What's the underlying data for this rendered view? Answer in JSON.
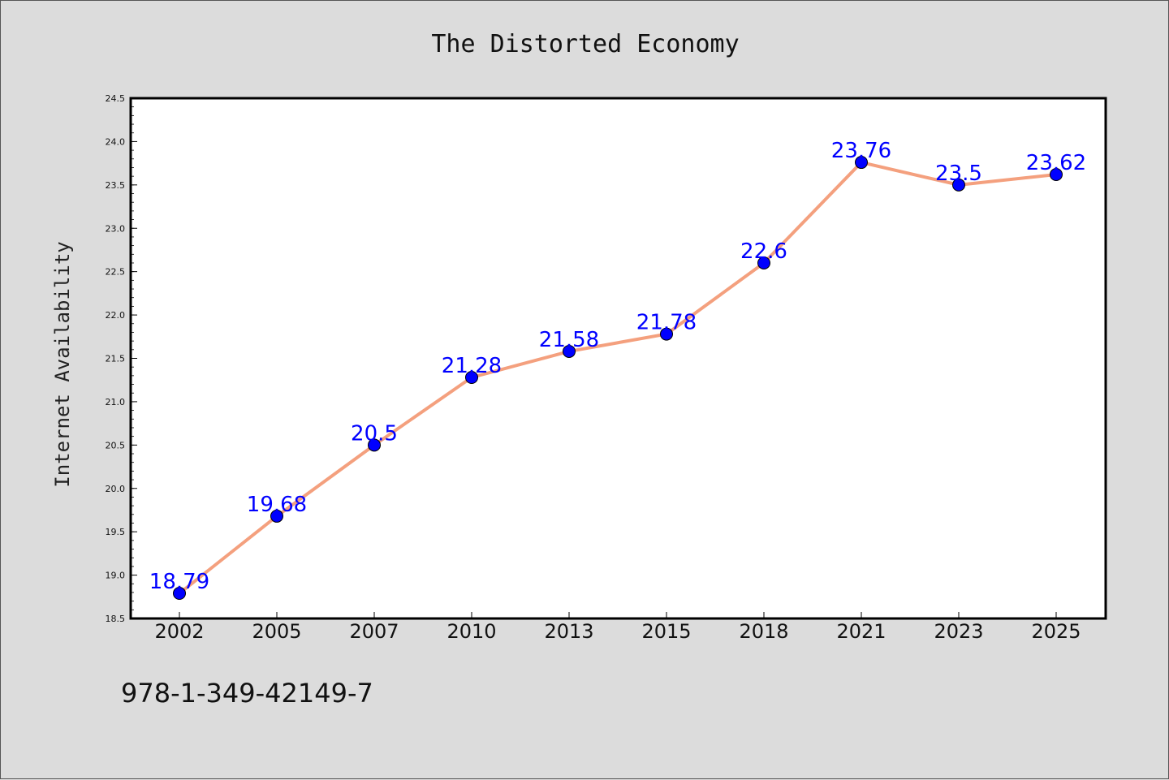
{
  "chart_data": {
    "type": "line",
    "title": "The Distorted Economy",
    "xlabel": "",
    "ylabel": "Internet Availability",
    "categories": [
      "2002",
      "2005",
      "2007",
      "2010",
      "2013",
      "2015",
      "2018",
      "2021",
      "2023",
      "2025"
    ],
    "series": [
      {
        "values": [
          18.79,
          19.68,
          20.5,
          21.28,
          21.58,
          21.78,
          22.6,
          23.76,
          23.5,
          23.62
        ],
        "labels": [
          "18.79",
          "19.68",
          "20.5",
          "21.28",
          "21.58",
          "21.78",
          "22.6",
          "23.76",
          "23.5",
          "23.62"
        ],
        "line_color": "#f4a07e",
        "marker_color": "#0000ff"
      }
    ],
    "ylim": [
      18.5,
      24.5
    ],
    "yticks": [
      "18.5",
      "19.0",
      "19.5",
      "20.0",
      "20.5",
      "21.0",
      "21.5",
      "22.0",
      "22.5",
      "23.0",
      "23.5",
      "24.0",
      "24.5"
    ],
    "grid": false,
    "legend": "none"
  },
  "footer_text": "978-1-349-42149-7",
  "colors": {
    "background": "#dcdcdc",
    "plot_area": "#ffffff",
    "line": "#f4a07e",
    "marker": "#0000ff",
    "data_label": "#0000ff"
  }
}
